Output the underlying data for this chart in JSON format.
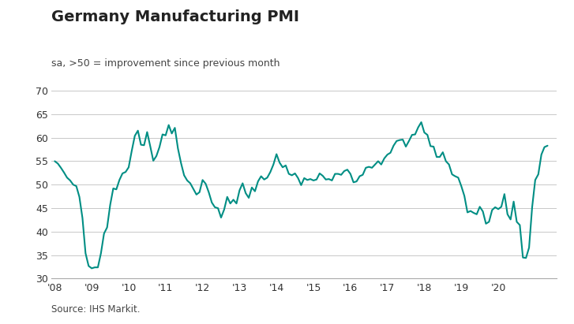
{
  "title": "Germany Manufacturing PMI",
  "subtitle": "sa, >50 = improvement since previous month",
  "source": "Source: IHS Markit.",
  "line_color": "#008E84",
  "line_width": 1.5,
  "background_color": "#ffffff",
  "grid_color": "#c8c8c8",
  "ylim": [
    30,
    70
  ],
  "yticks": [
    30,
    35,
    40,
    45,
    50,
    55,
    60,
    65,
    70
  ],
  "title_fontsize": 14,
  "subtitle_fontsize": 9,
  "source_fontsize": 8.5,
  "tick_fontsize": 9,
  "values": [
    55.0,
    54.5,
    53.6,
    52.6,
    51.5,
    50.9,
    50.0,
    49.7,
    47.4,
    42.9,
    35.4,
    32.7,
    32.2,
    32.4,
    32.4,
    35.4,
    39.6,
    40.9,
    45.7,
    49.2,
    49.0,
    51.0,
    52.4,
    52.7,
    53.7,
    57.2,
    60.4,
    61.5,
    58.5,
    58.4,
    61.2,
    58.2,
    55.1,
    56.1,
    58.0,
    60.7,
    60.5,
    62.7,
    60.9,
    62.1,
    57.7,
    54.6,
    52.0,
    50.9,
    50.3,
    49.1,
    47.9,
    48.4,
    51.0,
    50.2,
    48.4,
    46.2,
    45.2,
    45.0,
    43.0,
    44.7,
    47.4,
    46.0,
    46.8,
    46.0,
    48.8,
    50.3,
    48.2,
    47.2,
    49.4,
    48.6,
    50.7,
    51.8,
    51.1,
    51.5,
    52.7,
    54.3,
    56.5,
    54.7,
    53.7,
    54.1,
    52.3,
    52.0,
    52.4,
    51.4,
    49.9,
    51.4,
    51.0,
    51.2,
    50.9,
    51.1,
    52.4,
    51.9,
    51.1,
    51.2,
    50.9,
    52.3,
    52.3,
    52.1,
    52.9,
    53.2,
    52.3,
    50.5,
    50.7,
    51.8,
    52.1,
    53.6,
    53.8,
    53.6,
    54.3,
    55.0,
    54.3,
    55.6,
    56.4,
    56.8,
    58.3,
    59.3,
    59.5,
    59.6,
    58.1,
    59.3,
    60.6,
    60.7,
    62.2,
    63.3,
    61.1,
    60.6,
    58.2,
    58.1,
    55.9,
    55.9,
    56.9,
    55.0,
    54.3,
    52.2,
    51.8,
    51.5,
    49.7,
    47.6,
    44.1,
    44.4,
    44.0,
    43.7,
    45.3,
    44.3,
    41.7,
    42.1,
    44.6,
    45.2,
    44.8,
    45.3,
    48.0,
    43.7,
    42.6,
    46.4,
    42.1,
    41.4,
    34.5,
    34.4,
    36.6,
    45.2,
    51.0,
    52.2,
    56.4,
    58.0,
    58.3
  ],
  "xtick_positions": [
    0,
    12,
    24,
    36,
    48,
    60,
    72,
    84,
    96,
    108,
    120,
    132,
    144
  ],
  "xtick_labels": [
    "'08",
    "'09",
    "'10",
    "'11",
    "'12",
    "'13",
    "'14",
    "'15",
    "'16",
    "'17",
    "'18",
    "'19",
    "'20"
  ]
}
